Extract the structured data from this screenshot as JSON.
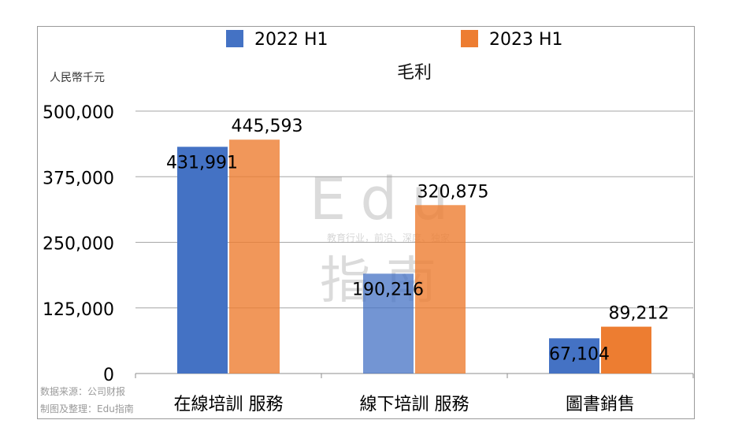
{
  "chart_data": {
    "type": "bar",
    "title": "毛利",
    "ylabel": "人民幣千元",
    "xlabel": "",
    "categories": [
      "在線培訓 服務",
      "線下培訓 服務",
      "圖書銷售"
    ],
    "series": [
      {
        "name": "2022 H1",
        "values": [
          431991,
          190216,
          67104
        ],
        "labels": [
          "431,991",
          "190,216",
          "67,104"
        ],
        "color": "#4472c4"
      },
      {
        "name": "2023 H1",
        "values": [
          445593,
          320875,
          89212
        ],
        "labels": [
          "445,593",
          "320,875",
          "89,212"
        ],
        "color": "#ed7d31"
      }
    ],
    "yticks": [
      0,
      125000,
      250000,
      375000,
      500000
    ],
    "ytick_labels": [
      "0",
      "125,000",
      "250,000",
      "375,000",
      "500,000"
    ],
    "ylim": [
      0,
      500000
    ],
    "grid": true,
    "legend": "top"
  },
  "source": "数据来源：公司财报",
  "credit": "制图及整理：Edu指南",
  "watermark": {
    "brand": "Edu",
    "brand_cn": "指南",
    "tagline": "教育行业，前沿、深度、独家"
  }
}
